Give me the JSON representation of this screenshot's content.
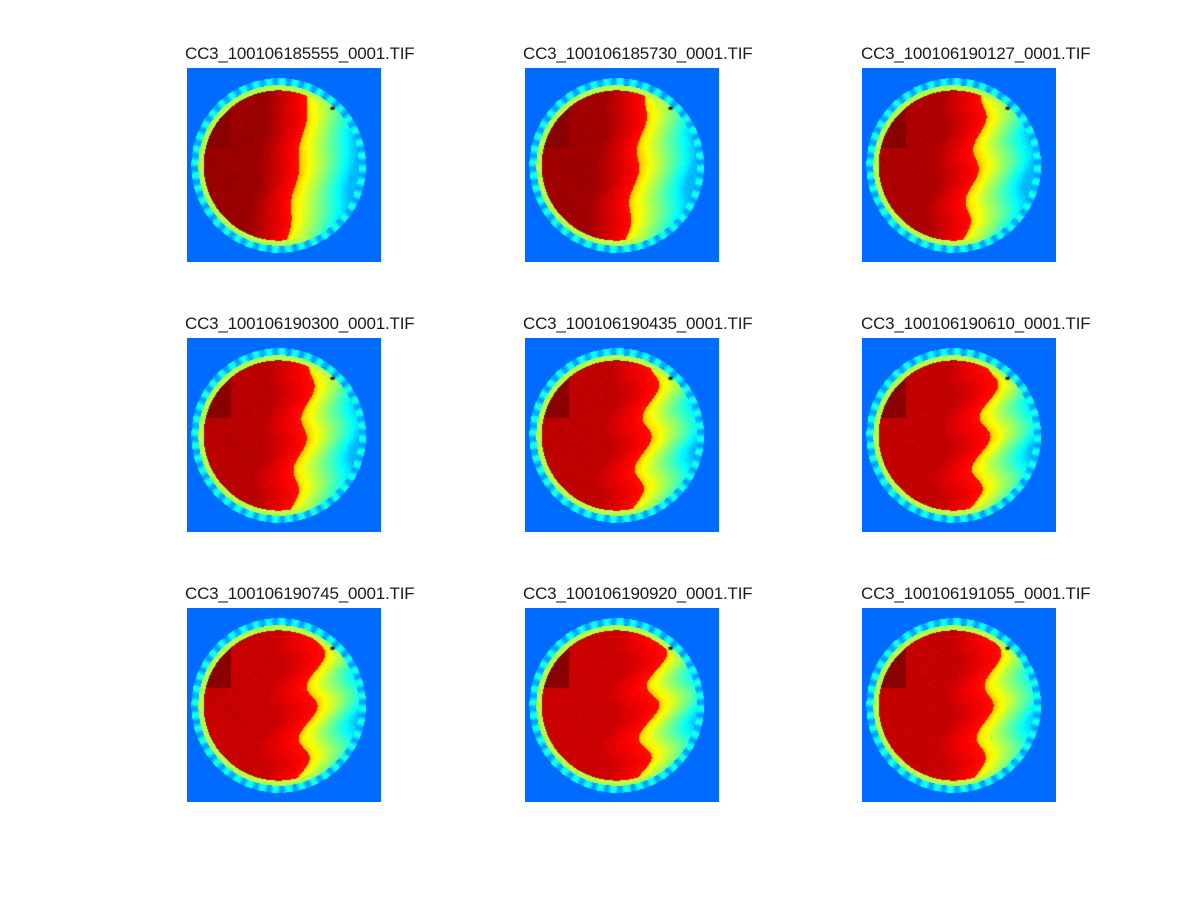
{
  "figure": {
    "background": "#ffffff",
    "colormap": "jet",
    "panels": [
      {
        "title": "CC3_100106185555_0001.TIF",
        "red_extent": 0.92,
        "darkness": 0.95,
        "wave": 0.02
      },
      {
        "title": "CC3_100106185730_0001.TIF",
        "red_extent": 0.9,
        "darkness": 0.9,
        "wave": 0.03
      },
      {
        "title": "CC3_100106190127_0001.TIF",
        "red_extent": 0.88,
        "darkness": 0.8,
        "wave": 0.05
      },
      {
        "title": "CC3_100106190300_0001.TIF",
        "red_extent": 0.82,
        "darkness": 0.7,
        "wave": 0.05
      },
      {
        "title": "CC3_100106190435_0001.TIF",
        "red_extent": 0.72,
        "darkness": 0.65,
        "wave": 0.07
      },
      {
        "title": "CC3_100106190610_0001.TIF",
        "red_extent": 0.7,
        "darkness": 0.62,
        "wave": 0.08
      },
      {
        "title": "CC3_100106190745_0001.TIF",
        "red_extent": 0.66,
        "darkness": 0.58,
        "wave": 0.08
      },
      {
        "title": "CC3_100106190920_0001.TIF",
        "red_extent": 0.6,
        "darkness": 0.55,
        "wave": 0.09
      },
      {
        "title": "CC3_100106191055_0001.TIF",
        "red_extent": 0.62,
        "darkness": 0.6,
        "wave": 0.07
      }
    ]
  }
}
